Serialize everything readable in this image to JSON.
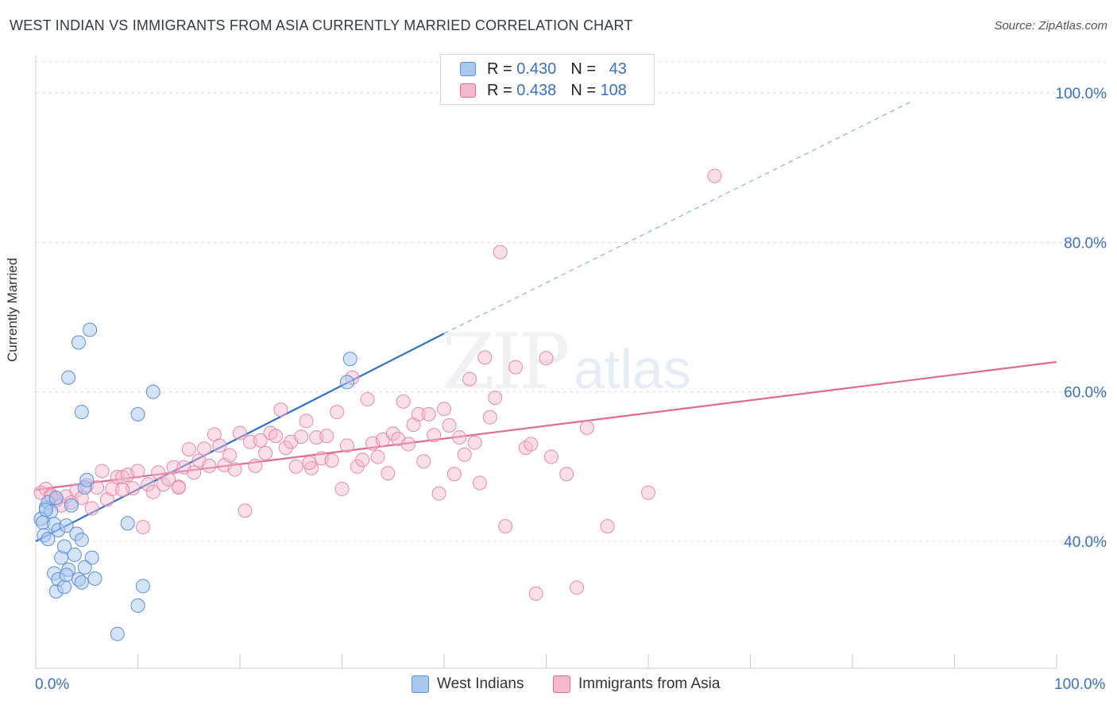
{
  "title": "WEST INDIAN VS IMMIGRANTS FROM ASIA CURRENTLY MARRIED CORRELATION CHART",
  "source": "Source: ZipAtlas.com",
  "watermark": {
    "zip": "ZIP",
    "atlas": "atlas"
  },
  "colors": {
    "blue": "#5b8fd9",
    "blue_fill": "#a9c8f0",
    "pink": "#e06a95",
    "pink_fill": "#f6b9cd",
    "axis_text": "#3a6fc4"
  },
  "legend_top": [
    {
      "r_label": "R =",
      "r_value": "0.430",
      "n_label": "N =",
      "n_value": "43"
    },
    {
      "r_label": "R =",
      "r_value": "0.438",
      "n_label": "N =",
      "n_value": "108"
    }
  ],
  "legend_bottom": [
    "West Indians",
    "Immigrants from Asia"
  ],
  "chart_data": {
    "type": "scatter",
    "ylabel": "Currently Married",
    "xlim": [
      0,
      100
    ],
    "ylim": [
      23,
      105
    ],
    "x_tick_labels": [
      "0.0%",
      "100.0%"
    ],
    "y_ticks": [
      40,
      60,
      80,
      100
    ],
    "y_tick_labels": [
      "40.0%",
      "60.0%",
      "80.0%",
      "100.0%"
    ],
    "grid": true,
    "series": [
      {
        "name": "West Indians",
        "points": [
          [
            0.5,
            43.0
          ],
          [
            0.7,
            42.5
          ],
          [
            1.0,
            44.5
          ],
          [
            1.2,
            45.2
          ],
          [
            1.5,
            44.0
          ],
          [
            1.8,
            42.3
          ],
          [
            2.0,
            45.8
          ],
          [
            0.8,
            40.8
          ],
          [
            1.2,
            40.3
          ],
          [
            2.2,
            41.5
          ],
          [
            2.5,
            37.8
          ],
          [
            2.8,
            39.3
          ],
          [
            3.0,
            42.1
          ],
          [
            3.5,
            44.8
          ],
          [
            4.0,
            41.0
          ],
          [
            4.5,
            40.2
          ],
          [
            4.8,
            47.2
          ],
          [
            5.0,
            48.2
          ],
          [
            3.2,
            36.2
          ],
          [
            1.8,
            35.7
          ],
          [
            2.0,
            33.3
          ],
          [
            2.2,
            34.9
          ],
          [
            2.8,
            33.9
          ],
          [
            3.0,
            35.5
          ],
          [
            4.2,
            34.9
          ],
          [
            4.5,
            34.5
          ],
          [
            5.8,
            35.0
          ],
          [
            5.5,
            37.8
          ],
          [
            4.8,
            36.5
          ],
          [
            3.8,
            38.2
          ],
          [
            8.0,
            27.6
          ],
          [
            10.0,
            31.4
          ],
          [
            10.5,
            34.0
          ],
          [
            9.0,
            42.4
          ],
          [
            10.0,
            57.0
          ],
          [
            11.5,
            60.0
          ],
          [
            4.5,
            57.3
          ],
          [
            3.2,
            61.9
          ],
          [
            4.2,
            66.6
          ],
          [
            5.3,
            68.3
          ],
          [
            30.5,
            61.3
          ],
          [
            30.8,
            64.4
          ],
          [
            1.0,
            44.2
          ]
        ],
        "trend": {
          "x": [
            0,
            40
          ],
          "y": [
            40.0,
            67.8
          ],
          "dashed_to": [
            86,
            99.0
          ]
        }
      },
      {
        "name": "Immigrants from Asia",
        "points": [
          [
            0.5,
            46.5
          ],
          [
            1.0,
            47.0
          ],
          [
            1.5,
            46.2
          ],
          [
            2.0,
            45.5
          ],
          [
            2.5,
            44.8
          ],
          [
            3.0,
            46.0
          ],
          [
            3.5,
            45.2
          ],
          [
            4.0,
            46.8
          ],
          [
            4.5,
            45.8
          ],
          [
            5.0,
            47.5
          ],
          [
            5.5,
            44.4
          ],
          [
            6.0,
            47.2
          ],
          [
            6.5,
            49.4
          ],
          [
            7.0,
            45.6
          ],
          [
            7.5,
            47.0
          ],
          [
            8.0,
            48.6
          ],
          [
            8.5,
            48.6
          ],
          [
            9.0,
            48.9
          ],
          [
            9.5,
            47.1
          ],
          [
            10.0,
            49.4
          ],
          [
            10.5,
            41.9
          ],
          [
            11.0,
            47.6
          ],
          [
            11.5,
            46.6
          ],
          [
            12.0,
            49.2
          ],
          [
            12.5,
            47.6
          ],
          [
            13.0,
            48.3
          ],
          [
            13.5,
            49.9
          ],
          [
            14.0,
            47.3
          ],
          [
            14.5,
            49.9
          ],
          [
            15.0,
            52.3
          ],
          [
            15.5,
            49.2
          ],
          [
            16.0,
            50.8
          ],
          [
            16.5,
            52.4
          ],
          [
            17.0,
            50.1
          ],
          [
            17.5,
            54.3
          ],
          [
            18.0,
            52.8
          ],
          [
            18.5,
            50.2
          ],
          [
            19.0,
            51.5
          ],
          [
            19.5,
            49.6
          ],
          [
            20.0,
            54.5
          ],
          [
            20.5,
            44.1
          ],
          [
            21.0,
            53.3
          ],
          [
            21.5,
            50.1
          ],
          [
            22.0,
            53.5
          ],
          [
            22.5,
            51.8
          ],
          [
            23.0,
            54.5
          ],
          [
            23.5,
            54.1
          ],
          [
            24.0,
            57.6
          ],
          [
            24.5,
            52.5
          ],
          [
            25.0,
            53.3
          ],
          [
            25.5,
            50.0
          ],
          [
            26.0,
            54.0
          ],
          [
            26.5,
            56.1
          ],
          [
            27.0,
            49.8
          ],
          [
            27.5,
            53.9
          ],
          [
            28.0,
            51.1
          ],
          [
            28.5,
            54.1
          ],
          [
            29.0,
            50.8
          ],
          [
            29.5,
            57.3
          ],
          [
            30.0,
            47.0
          ],
          [
            30.5,
            52.8
          ],
          [
            31.0,
            61.9
          ],
          [
            31.5,
            50.0
          ],
          [
            32.0,
            50.9
          ],
          [
            32.5,
            59.0
          ],
          [
            33.0,
            53.1
          ],
          [
            33.5,
            51.3
          ],
          [
            34.0,
            53.6
          ],
          [
            34.5,
            49.1
          ],
          [
            35.0,
            54.4
          ],
          [
            35.5,
            53.7
          ],
          [
            36.0,
            58.7
          ],
          [
            36.5,
            53.0
          ],
          [
            37.0,
            55.6
          ],
          [
            37.5,
            57.0
          ],
          [
            38.0,
            50.7
          ],
          [
            38.5,
            57.0
          ],
          [
            39.0,
            54.2
          ],
          [
            39.5,
            46.4
          ],
          [
            40.0,
            57.7
          ],
          [
            40.5,
            55.5
          ],
          [
            41.0,
            49.0
          ],
          [
            41.5,
            53.9
          ],
          [
            42.0,
            51.6
          ],
          [
            42.5,
            61.7
          ],
          [
            43.0,
            53.2
          ],
          [
            43.5,
            47.8
          ],
          [
            44.0,
            64.6
          ],
          [
            44.5,
            56.6
          ],
          [
            45.0,
            59.2
          ],
          [
            45.5,
            78.7
          ],
          [
            46.0,
            42.0
          ],
          [
            47.0,
            63.3
          ],
          [
            48.0,
            52.5
          ],
          [
            48.5,
            53.0
          ],
          [
            49.0,
            33.0
          ],
          [
            50.0,
            64.5
          ],
          [
            50.5,
            51.3
          ],
          [
            52.0,
            49.0
          ],
          [
            53.0,
            33.8
          ],
          [
            54.0,
            55.2
          ],
          [
            56.0,
            42.0
          ],
          [
            60.0,
            46.5
          ],
          [
            66.5,
            88.9
          ],
          [
            26.8,
            50.5
          ],
          [
            14.0,
            47.2
          ],
          [
            8.5,
            46.9
          ],
          [
            1.5,
            46.0
          ]
        ],
        "trend": {
          "x": [
            0,
            100
          ],
          "y": [
            46.9,
            64.0
          ]
        }
      }
    ]
  }
}
